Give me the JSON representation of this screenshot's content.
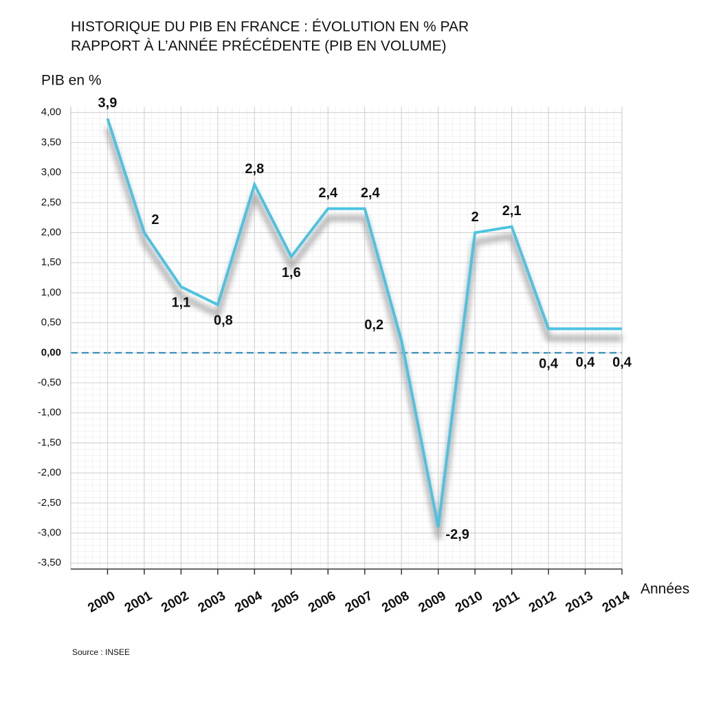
{
  "chart_data": {
    "type": "line",
    "title": [
      "HISTORIQUE DU PIB EN FRANCE : ÉVOLUTION EN % PAR",
      "RAPPORT À L’ANNÉE PRÉCÉDENTE (PIB EN VOLUME)"
    ],
    "y_label": "PIB en %",
    "x_label": "Années",
    "source": "Source : INSEE",
    "categories": [
      "2000",
      "2001",
      "2002",
      "2003",
      "2004",
      "2005",
      "2006",
      "2007",
      "2008",
      "2009",
      "2010",
      "2011",
      "2012",
      "2013",
      "2014"
    ],
    "values": [
      3.9,
      2,
      1.1,
      0.8,
      2.8,
      1.6,
      2.4,
      2.4,
      0.2,
      -2.9,
      2,
      2.1,
      0.4,
      0.4,
      0.4
    ],
    "value_labels": [
      "3,9",
      "2",
      "1,1",
      "0,8",
      "2,8",
      "1,6",
      "2,4",
      "2,4",
      "0,2",
      "-2,9",
      "2",
      "2,1",
      "0,4",
      "0,4",
      "0,4"
    ],
    "color": "#4cc3e2",
    "zero_line_color": "#1f7fb0",
    "ylim": [
      -3.6,
      4.1
    ],
    "yticks": [
      {
        "value": 4.0,
        "label": "4,00"
      },
      {
        "value": 3.5,
        "label": "3,50"
      },
      {
        "value": 3.0,
        "label": "3,00"
      },
      {
        "value": 2.5,
        "label": "2,50"
      },
      {
        "value": 2.0,
        "label": "2,00"
      },
      {
        "value": 1.5,
        "label": "1,50"
      },
      {
        "value": 1.0,
        "label": "1,00"
      },
      {
        "value": 0.5,
        "label": "0,50"
      },
      {
        "value": 0,
        "label": "0,00"
      },
      {
        "value": -0.5,
        "label": "-0,50"
      },
      {
        "value": -1.0,
        "label": "-1,00"
      },
      {
        "value": -1.5,
        "label": "-1,50"
      },
      {
        "value": -2.0,
        "label": "-2,00"
      },
      {
        "value": -2.5,
        "label": "-2,50"
      },
      {
        "value": -3.0,
        "label": "-3,00"
      },
      {
        "value": -3.5,
        "label": "-3,50"
      }
    ],
    "grid": true
  }
}
